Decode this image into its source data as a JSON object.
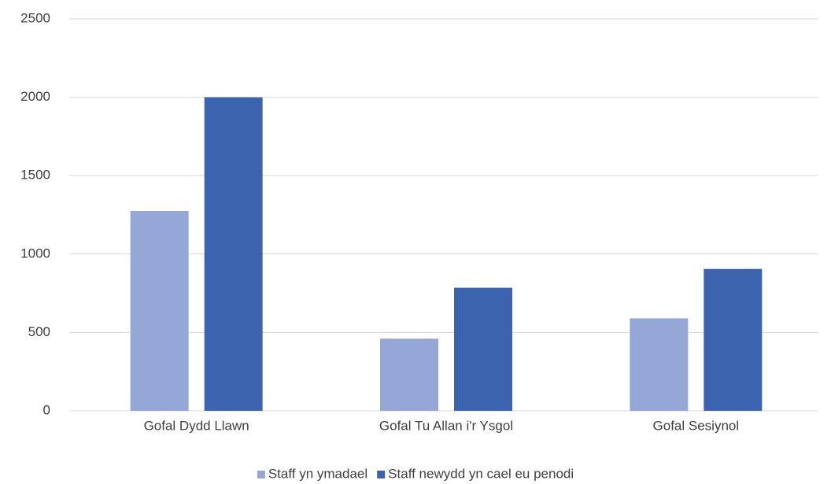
{
  "chart_data": {
    "type": "bar",
    "categories": [
      "Gofal Dydd Llawn",
      "Gofal Tu Allan i'r Ysgol",
      "Gofal Sesiynol"
    ],
    "series": [
      {
        "name": "Staff yn ymadael",
        "color": "#94a7d6",
        "values": [
          1275,
          460,
          590
        ]
      },
      {
        "name": "Staff newydd yn cael eu penodi",
        "color": "#3c64ae",
        "values": [
          2000,
          785,
          905
        ]
      }
    ],
    "ylim": [
      0,
      2500
    ],
    "yticks": [
      0,
      500,
      1000,
      1500,
      2000,
      2500
    ],
    "grid": true,
    "legend": "bottom"
  }
}
